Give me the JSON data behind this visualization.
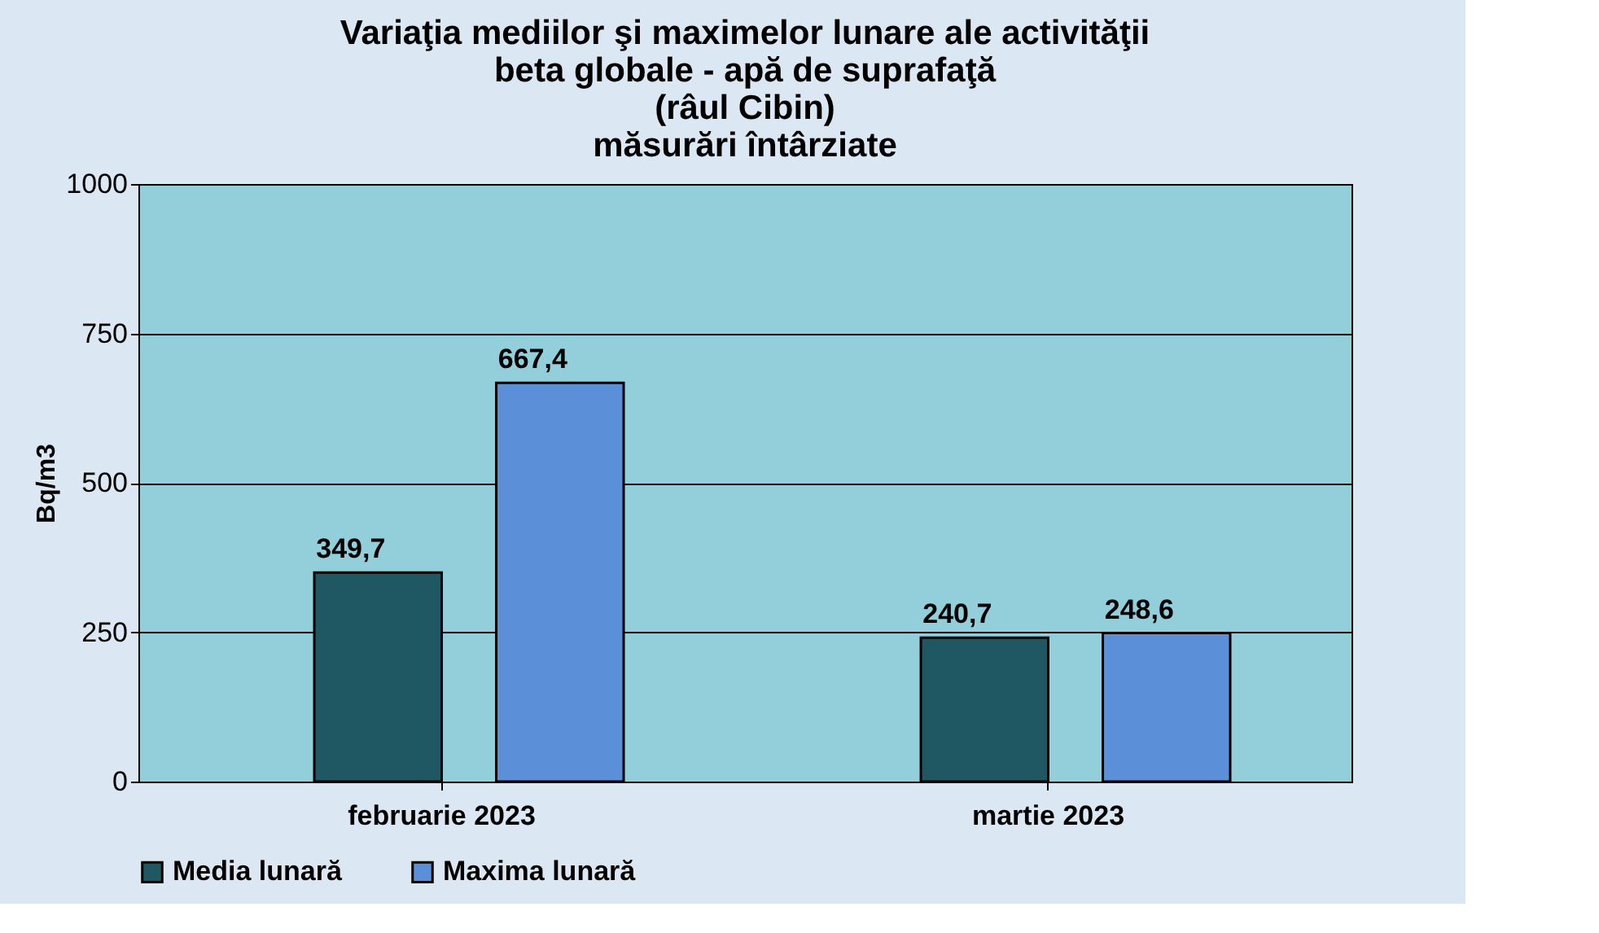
{
  "chart_data": {
    "type": "bar",
    "title": "Variaţia mediilor şi maximelor lunare ale activităţii\nbeta globale - apă de suprafaţă\n(râul Cibin)\nmăsurări întârziate",
    "ylabel": "Bq/m3",
    "categories": [
      "februarie 2023",
      "martie 2023"
    ],
    "series": [
      {
        "name": "Media lunară",
        "color": "#1f5862",
        "values": [
          349.7,
          240.7
        ],
        "value_labels": [
          "349,7",
          "240,7"
        ]
      },
      {
        "name": "Maxima lunară",
        "color": "#5b90d8",
        "values": [
          667.4,
          248.6
        ],
        "value_labels": [
          "667,4",
          "248,6"
        ]
      }
    ],
    "ylim": [
      0,
      1000
    ],
    "yticks": [
      0,
      250,
      500,
      750,
      1000
    ],
    "grid": "y",
    "legend": "bottom"
  }
}
